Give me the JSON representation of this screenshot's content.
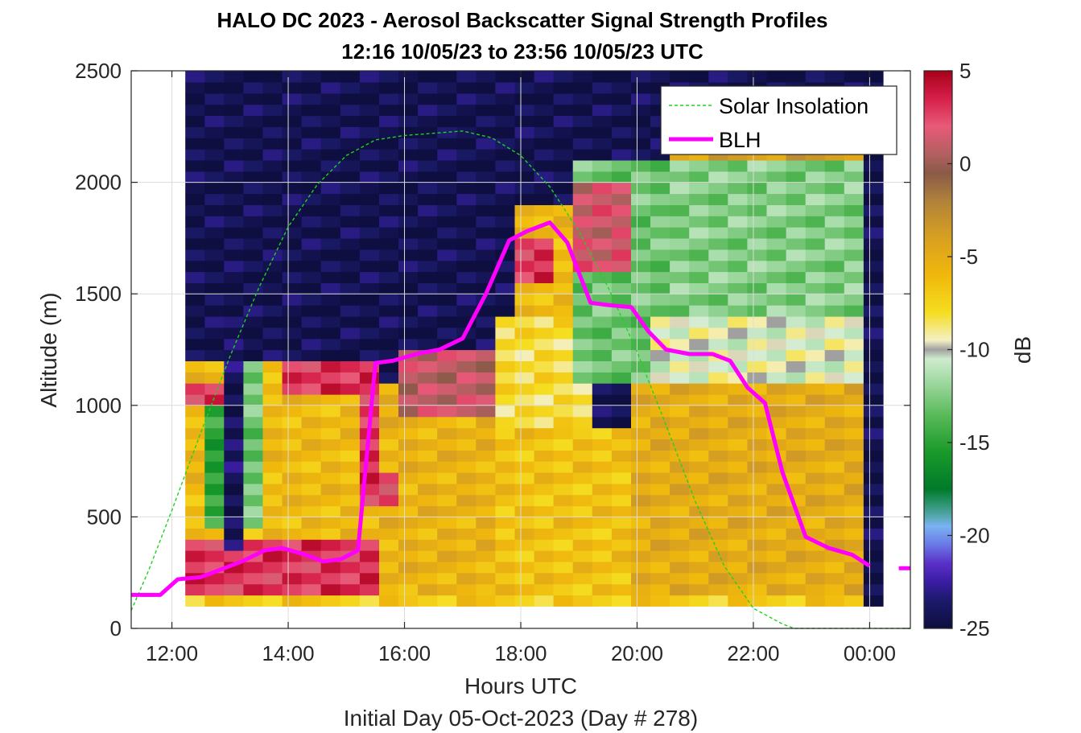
{
  "chart_data": {
    "type": "heatmap",
    "title": "HALO DC 2023 - Aerosol Backscatter Signal Strength Profiles",
    "subtitle": "12:16 10/05/23 to 23:56 10/05/23  UTC",
    "xlabel": "Hours UTC",
    "xlabel2": "Initial Day 05-Oct-2023 (Day # 278)",
    "ylabel": "Altitude (m)",
    "colorbar_label": "dB",
    "xlim": [
      11.3,
      24.7
    ],
    "ylim": [
      0,
      2500
    ],
    "clim": [
      -25,
      5
    ],
    "x_ticks": [
      12,
      14,
      16,
      18,
      20,
      22,
      24
    ],
    "x_tick_labels": [
      "12:00",
      "14:00",
      "16:00",
      "18:00",
      "20:00",
      "22:00",
      "00:00"
    ],
    "y_ticks": [
      0,
      500,
      1000,
      1500,
      2000,
      2500
    ],
    "y_tick_labels": [
      "0",
      "500",
      "1000",
      "1500",
      "2000",
      "2500"
    ],
    "colorbar_ticks": [
      5,
      0,
      -5,
      -10,
      -15,
      -20,
      -25
    ],
    "colorbar_tick_labels": [
      "5",
      "0",
      "-5",
      "-10",
      "-15",
      "-20",
      "-25"
    ],
    "legend": {
      "position": "top-right",
      "entries": [
        "Solar Insolation",
        "BLH"
      ]
    },
    "grid": true,
    "heatmap": {
      "x_start": 12.23,
      "dx": 0.3333,
      "n_cols": 36,
      "y_start": 100,
      "dy": 50,
      "n_rows": 48,
      "regions": [
        {
          "x": [
            12.23,
            24.0
          ],
          "y": [
            100,
            150
          ],
          "value": -7
        },
        {
          "x": [
            12.23,
            15.5
          ],
          "y": [
            150,
            400
          ],
          "value": 3
        },
        {
          "x": [
            12.23,
            15.5
          ],
          "y": [
            400,
            1200
          ],
          "value": -6
        },
        {
          "x": [
            12.23,
            13.4
          ],
          "y": [
            1000,
            1100
          ],
          "value": 3
        },
        {
          "x": [
            12.5,
            13.0
          ],
          "y": [
            450,
            1000
          ],
          "value": -15
        },
        {
          "x": [
            12.9,
            13.2
          ],
          "y": [
            350,
            1400
          ],
          "value": -24
        },
        {
          "x": [
            13.2,
            13.7
          ],
          "y": [
            450,
            1200
          ],
          "value": -13
        },
        {
          "x": [
            13.8,
            15.2
          ],
          "y": [
            1050,
            1200
          ],
          "value": 3
        },
        {
          "x": [
            15.5,
            17.7
          ],
          "y": [
            150,
            1100
          ],
          "value": -5.5
        },
        {
          "x": [
            15.3,
            16.0
          ],
          "y": [
            550,
            700
          ],
          "value": 2
        },
        {
          "x": [
            15.3,
            15.6
          ],
          "y": [
            550,
            1200
          ],
          "value": 3
        },
        {
          "x": [
            16.0,
            17.5
          ],
          "y": [
            950,
            1250
          ],
          "value": 1
        },
        {
          "x": [
            17.7,
            20.0
          ],
          "y": [
            150,
            900
          ],
          "value": -6.5
        },
        {
          "x": [
            17.7,
            19.3
          ],
          "y": [
            900,
            1400
          ],
          "value": -8
        },
        {
          "x": [
            17.8,
            19.0
          ],
          "y": [
            1400,
            1900
          ],
          "value": -6
        },
        {
          "x": [
            18.0,
            18.6
          ],
          "y": [
            1550,
            1750
          ],
          "value": 3
        },
        {
          "x": [
            18.9,
            20.5
          ],
          "y": [
            1100,
            2100
          ],
          "value": -13
        },
        {
          "x": [
            19.0,
            20.0
          ],
          "y": [
            1600,
            2000
          ],
          "value": 1.5
        },
        {
          "x": [
            20.0,
            24.0
          ],
          "y": [
            150,
            1100
          ],
          "value": -5
        },
        {
          "x": [
            20.3,
            24.0
          ],
          "y": [
            1100,
            1400
          ],
          "value": -10
        },
        {
          "x": [
            20.5,
            24.0
          ],
          "y": [
            1400,
            2100
          ],
          "value": -12.5
        },
        {
          "x": [
            20.5,
            24.0
          ],
          "y": [
            2100,
            2300
          ],
          "value": -4
        }
      ],
      "background_value": -24.5
    },
    "series": [
      {
        "name": "BLH",
        "x": [
          11.3,
          11.8,
          12.1,
          12.5,
          12.8,
          13.2,
          13.6,
          13.9,
          14.3,
          14.6,
          14.9,
          15.2,
          15.5,
          15.8,
          16.2,
          16.6,
          17.0,
          17.4,
          17.8,
          18.1,
          18.5,
          18.8,
          19.2,
          19.5,
          19.9,
          20.2,
          20.5,
          20.9,
          21.3,
          21.6,
          21.9,
          22.2,
          22.5,
          22.9,
          23.3,
          23.7,
          24.0
        ],
        "y": [
          150,
          150,
          220,
          230,
          260,
          300,
          350,
          360,
          330,
          300,
          310,
          350,
          1190,
          1200,
          1230,
          1250,
          1300,
          1500,
          1740,
          1780,
          1820,
          1730,
          1460,
          1450,
          1440,
          1330,
          1250,
          1230,
          1230,
          1200,
          1080,
          1010,
          700,
          410,
          360,
          330,
          280
        ],
        "x_extra": [
          24.5,
          24.7
        ],
        "y_extra": [
          270,
          270
        ]
      },
      {
        "name": "Solar Insolation",
        "x": [
          11.3,
          11.6,
          12.0,
          12.5,
          13.0,
          13.5,
          14.0,
          14.5,
          15.0,
          15.5,
          16.0,
          16.5,
          17.0,
          17.5,
          18.0,
          18.5,
          19.0,
          19.5,
          20.0,
          20.5,
          21.0,
          21.5,
          22.0,
          22.5,
          22.7,
          23.0,
          24.7
        ],
        "y": [
          80,
          260,
          530,
          880,
          1220,
          1530,
          1800,
          1990,
          2120,
          2190,
          2210,
          2220,
          2230,
          2200,
          2120,
          1980,
          1780,
          1530,
          1240,
          910,
          570,
          280,
          90,
          20,
          0,
          0,
          0
        ]
      }
    ]
  },
  "colors": {
    "blh": "#ff00ff",
    "solar": "#1fd21f",
    "colormap_stops": [
      [
        -25,
        "#0e0e40"
      ],
      [
        -23.5,
        "#1c1a6a"
      ],
      [
        -22.5,
        "#3a1ca4"
      ],
      [
        -21.5,
        "#5a30c8"
      ],
      [
        -20.5,
        "#6a78e6"
      ],
      [
        -19.5,
        "#7ab2f2"
      ],
      [
        -18.8,
        "#4aa49a"
      ],
      [
        -17.5,
        "#007a2a"
      ],
      [
        -15.5,
        "#1a9a2a"
      ],
      [
        -13.5,
        "#5aba5a"
      ],
      [
        -11.5,
        "#a8dcaa"
      ],
      [
        -10.3,
        "#d6eed4"
      ],
      [
        -10,
        "#a0a0a0"
      ],
      [
        -9.5,
        "#f4f0c4"
      ],
      [
        -8,
        "#f5dd20"
      ],
      [
        -6,
        "#f0b80c"
      ],
      [
        -4,
        "#d8a020"
      ],
      [
        -2,
        "#b0823a"
      ],
      [
        -0.5,
        "#8a5a48"
      ],
      [
        0.5,
        "#b06060"
      ],
      [
        2,
        "#e85a78"
      ],
      [
        3.5,
        "#d6204a"
      ],
      [
        5,
        "#a8001a"
      ]
    ]
  }
}
